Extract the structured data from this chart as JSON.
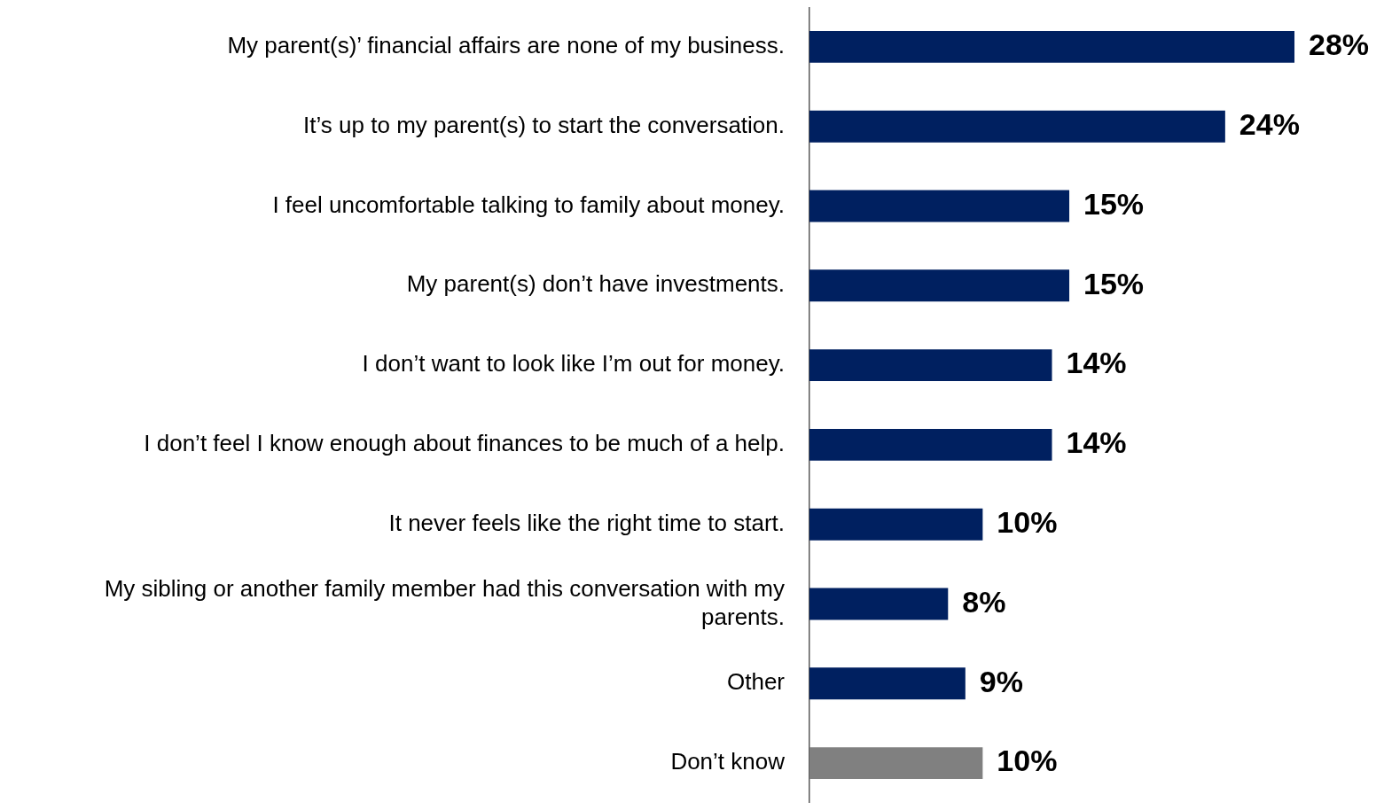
{
  "chart_data": {
    "type": "bar",
    "orientation": "horizontal",
    "categories": [
      "My parent(s)’ financial affairs are none of my business.",
      "It’s up to my parent(s) to start the conversation.",
      "I feel uncomfortable talking to family about money.",
      "My parent(s) don’t have investments.",
      "I don’t want to look like I’m out for money.",
      "I don’t feel I know enough about finances to be much of a help.",
      "It never feels like the right time to start.",
      "My sibling or another family member had this conversation with my parents.",
      "Other",
      "Don’t know"
    ],
    "values": [
      28,
      24,
      15,
      15,
      14,
      14,
      10,
      8,
      9,
      10
    ],
    "colors": [
      "#002060",
      "#002060",
      "#002060",
      "#002060",
      "#002060",
      "#002060",
      "#002060",
      "#002060",
      "#002060",
      "#808080"
    ],
    "value_labels": [
      "28%",
      "24%",
      "15%",
      "15%",
      "14%",
      "14%",
      "10%",
      "8%",
      "9%",
      "10%"
    ],
    "legend": false
  }
}
